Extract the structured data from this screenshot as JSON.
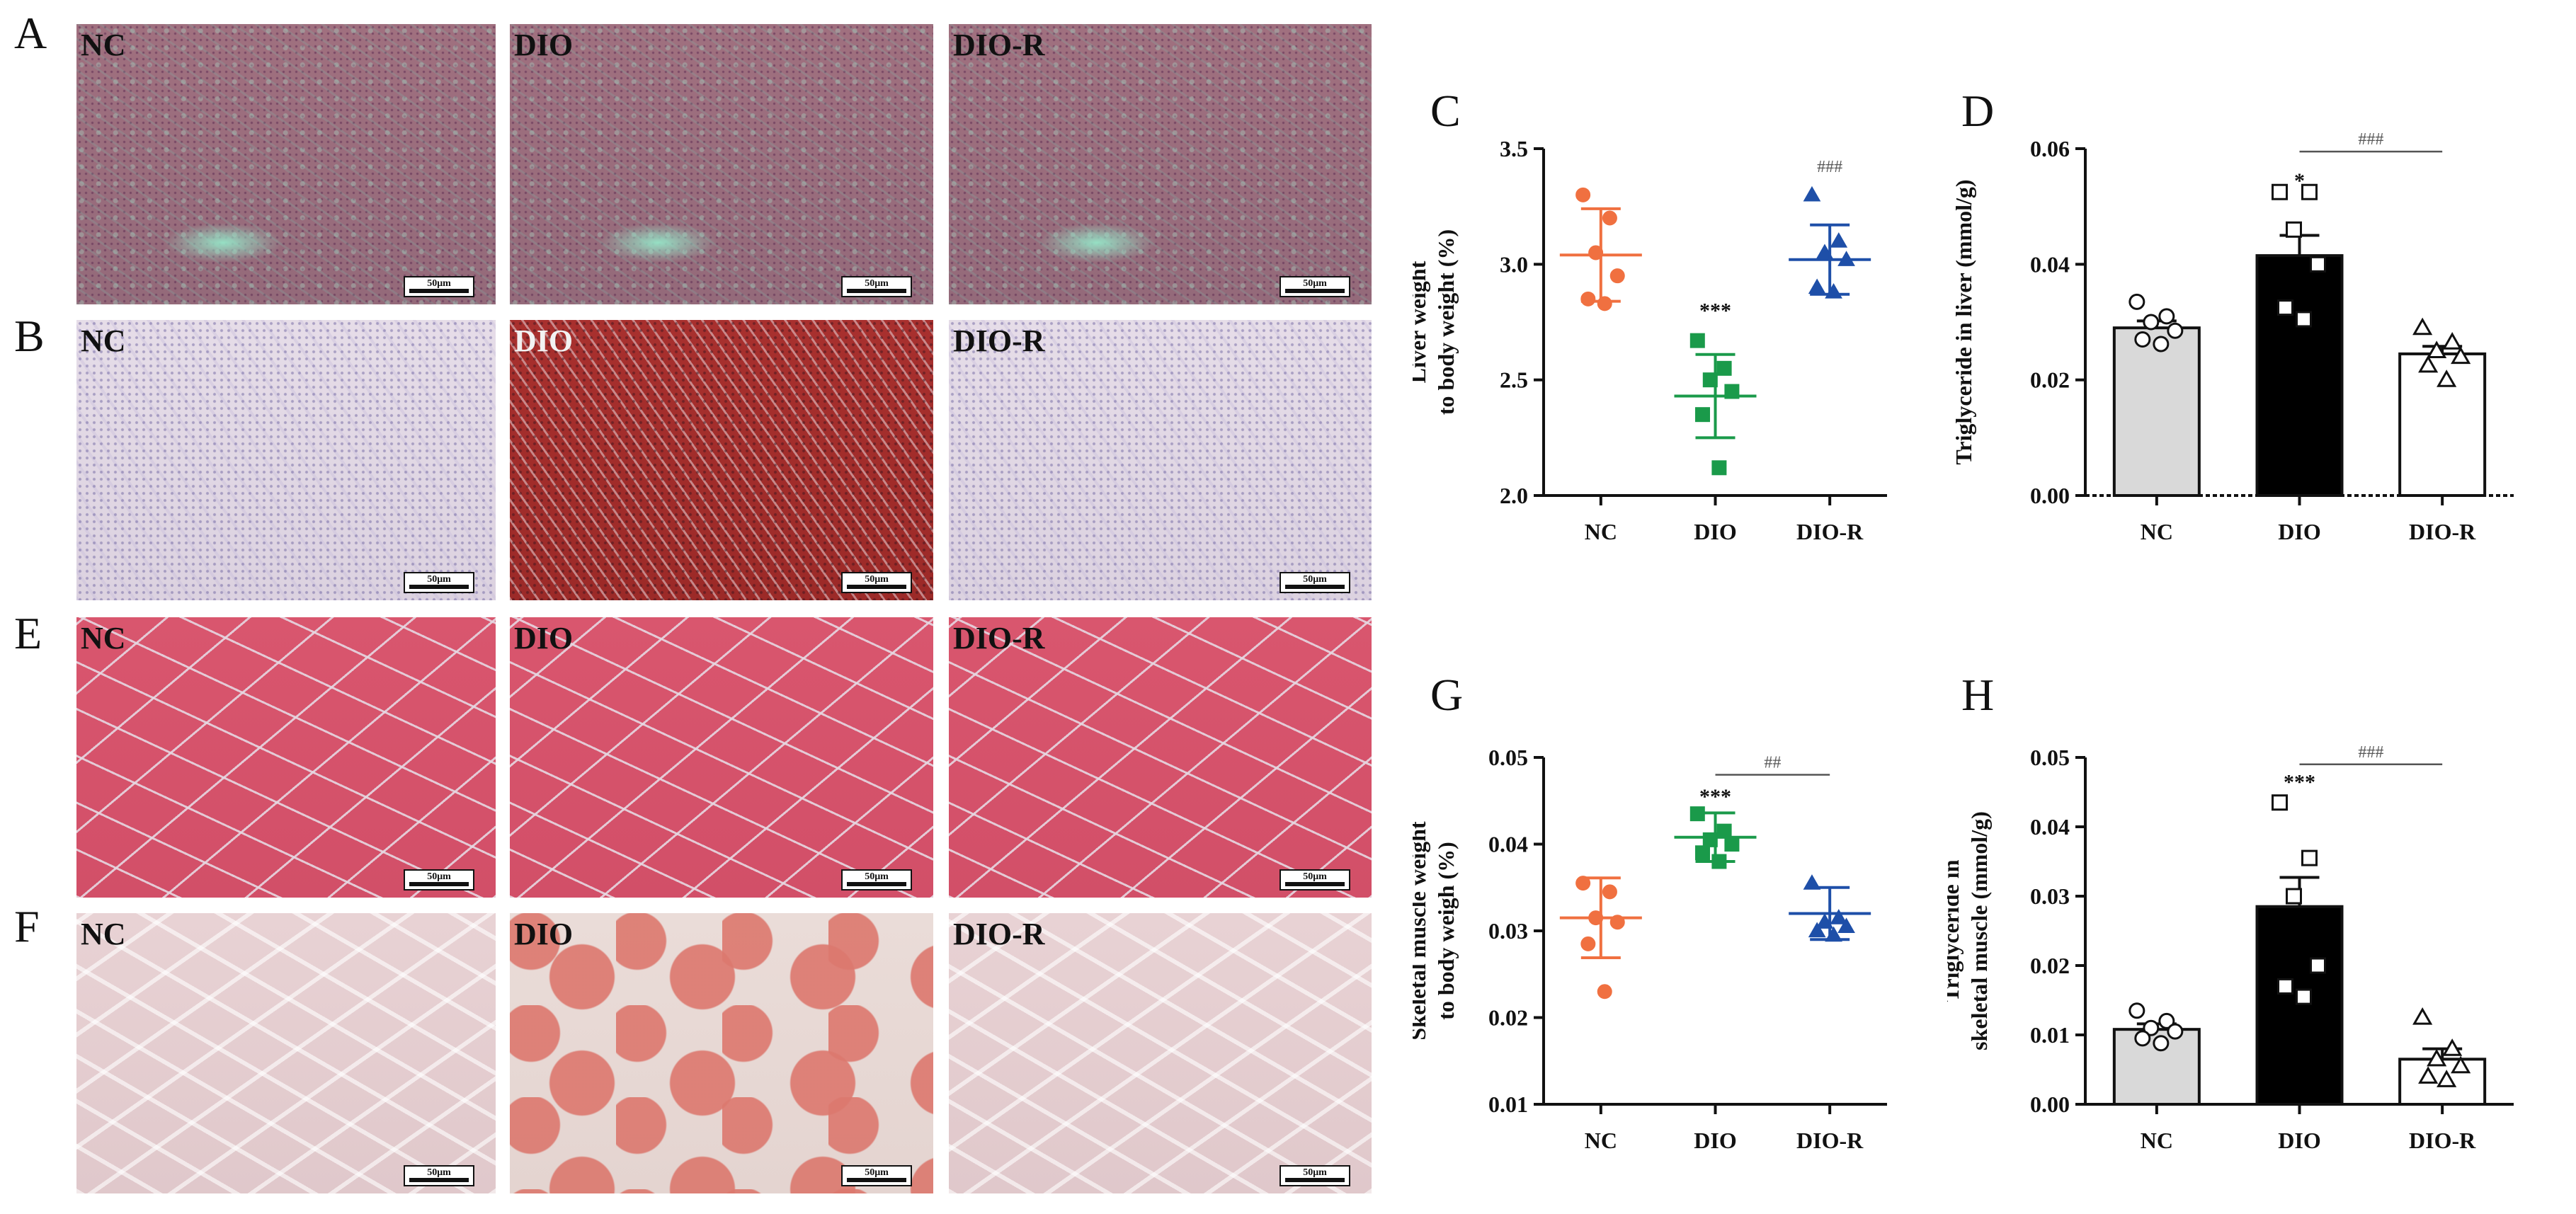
{
  "figure": {
    "panel_letters": {
      "A": "A",
      "B": "B",
      "C": "C",
      "D": "D",
      "E": "E",
      "F": "F",
      "G": "G",
      "H": "H"
    },
    "image_group_labels": [
      "NC",
      "DIO",
      "DIO-R"
    ],
    "scalebar_label": "50μm",
    "image_rows": [
      {
        "id": "A",
        "stain": "he-liver"
      },
      {
        "id": "B",
        "stain": "oil-red-liver"
      },
      {
        "id": "E",
        "stain": "he-muscle"
      },
      {
        "id": "F",
        "stain": "oil-red-muscle"
      }
    ]
  },
  "colors": {
    "NC": "#f07040",
    "DIO": "#1a9a4a",
    "DIO_R": "#1e4fa8",
    "bar_NC": "#d9d9d9",
    "bar_DIO": "#000000",
    "bar_DIO_R": "#ffffff"
  },
  "chart_data": [
    {
      "id": "C",
      "type": "scatter",
      "categories": [
        "NC",
        "DIO",
        "DIO-R"
      ],
      "ylabel": "Liver weight\nto body weight  (%)",
      "ylim": [
        2.0,
        3.5
      ],
      "yticks": [
        2.0,
        2.5,
        3.0,
        3.5
      ],
      "ytick_labels": [
        "2.0",
        "2.5",
        "3.0",
        "3.5"
      ],
      "series": [
        {
          "group": "NC",
          "marker": "circle",
          "points": [
            3.3,
            3.2,
            3.05,
            2.95,
            2.85,
            2.83
          ],
          "mean": 3.04,
          "sd": 0.2
        },
        {
          "group": "DIO",
          "marker": "square",
          "points": [
            2.67,
            2.55,
            2.5,
            2.45,
            2.35,
            2.12
          ],
          "mean": 2.43,
          "sd": 0.18
        },
        {
          "group": "DIO-R",
          "marker": "triangle",
          "points": [
            3.3,
            3.1,
            3.05,
            3.02,
            2.9,
            2.88
          ],
          "mean": 3.02,
          "sd": 0.15
        }
      ],
      "annotations": [
        {
          "text": "***",
          "category": "DIO",
          "y": 2.8
        },
        {
          "text": "###",
          "category": "DIO-R",
          "y": 3.43
        }
      ]
    },
    {
      "id": "D",
      "type": "bar",
      "categories": [
        "NC",
        "DIO",
        "DIO-R"
      ],
      "ylabel": "Triglyceride in liver  (mmol/g)",
      "ylim": [
        0.0,
        0.06
      ],
      "yticks": [
        0.0,
        0.02,
        0.04,
        0.06
      ],
      "ytick_labels": [
        "0.00",
        "0.02",
        "0.04",
        "0.06"
      ],
      "series": [
        {
          "group": "NC",
          "marker": "circle",
          "value": 0.029,
          "sem": 0.0012,
          "points": [
            0.0335,
            0.031,
            0.03,
            0.0285,
            0.027,
            0.0262
          ]
        },
        {
          "group": "DIO",
          "marker": "square",
          "value": 0.0415,
          "sem": 0.0035,
          "points": [
            0.0525,
            0.0525,
            0.046,
            0.04,
            0.0325,
            0.0305
          ]
        },
        {
          "group": "DIO-R",
          "marker": "triangle",
          "value": 0.0245,
          "sem": 0.0013,
          "points": [
            0.029,
            0.0265,
            0.025,
            0.024,
            0.0225,
            0.02
          ]
        }
      ],
      "annotations": [
        {
          "text": "*",
          "category": "DIO",
          "y": 0.0545
        },
        {
          "text": "###",
          "from": "DIO",
          "to": "DIO-R",
          "y": 0.0595
        }
      ]
    },
    {
      "id": "G",
      "type": "scatter",
      "categories": [
        "NC",
        "DIO",
        "DIO-R"
      ],
      "ylabel": "Skeletal muscle weight\nto body weigh  (%)",
      "ylim": [
        0.01,
        0.05
      ],
      "yticks": [
        0.01,
        0.02,
        0.03,
        0.04,
        0.05
      ],
      "ytick_labels": [
        "0.01",
        "0.02",
        "0.03",
        "0.04",
        "0.05"
      ],
      "series": [
        {
          "group": "NC",
          "marker": "circle",
          "points": [
            0.0355,
            0.0345,
            0.0315,
            0.031,
            0.0285,
            0.023
          ],
          "mean": 0.0315,
          "sd": 0.0046
        },
        {
          "group": "DIO",
          "marker": "square",
          "points": [
            0.0435,
            0.0415,
            0.0405,
            0.04,
            0.039,
            0.038
          ],
          "mean": 0.0408,
          "sd": 0.0028
        },
        {
          "group": "DIO-R",
          "marker": "triangle",
          "points": [
            0.0355,
            0.0315,
            0.031,
            0.0305,
            0.03,
            0.0295
          ],
          "mean": 0.032,
          "sd": 0.003
        }
      ],
      "annotations": [
        {
          "text": "***",
          "category": "DIO",
          "y": 0.0455
        },
        {
          "text": "##",
          "from": "DIO",
          "to": "DIO-R",
          "y": 0.048
        }
      ]
    },
    {
      "id": "H",
      "type": "bar",
      "categories": [
        "NC",
        "DIO",
        "DIO-R"
      ],
      "ylabel": "Triglyceride in\nskeletal muscle  (mmol/g)",
      "ylim": [
        0.0,
        0.05
      ],
      "yticks": [
        0.0,
        0.01,
        0.02,
        0.03,
        0.04,
        0.05
      ],
      "ytick_labels": [
        "0.00",
        "0.01",
        "0.02",
        "0.03",
        "0.04",
        "0.05"
      ],
      "series": [
        {
          "group": "NC",
          "marker": "circle",
          "value": 0.0108,
          "sem": 0.0008,
          "points": [
            0.0135,
            0.012,
            0.011,
            0.0105,
            0.0095,
            0.0088
          ]
        },
        {
          "group": "DIO",
          "marker": "square",
          "value": 0.0285,
          "sem": 0.0042,
          "points": [
            0.0435,
            0.0355,
            0.03,
            0.02,
            0.017,
            0.0155
          ]
        },
        {
          "group": "DIO-R",
          "marker": "triangle",
          "value": 0.0065,
          "sem": 0.0015,
          "points": [
            0.0125,
            0.008,
            0.0065,
            0.0055,
            0.004,
            0.0035
          ]
        }
      ],
      "annotations": [
        {
          "text": "***",
          "category": "DIO",
          "y": 0.0465
        },
        {
          "text": "###",
          "from": "DIO",
          "to": "DIO-R",
          "y": 0.049
        }
      ]
    }
  ]
}
